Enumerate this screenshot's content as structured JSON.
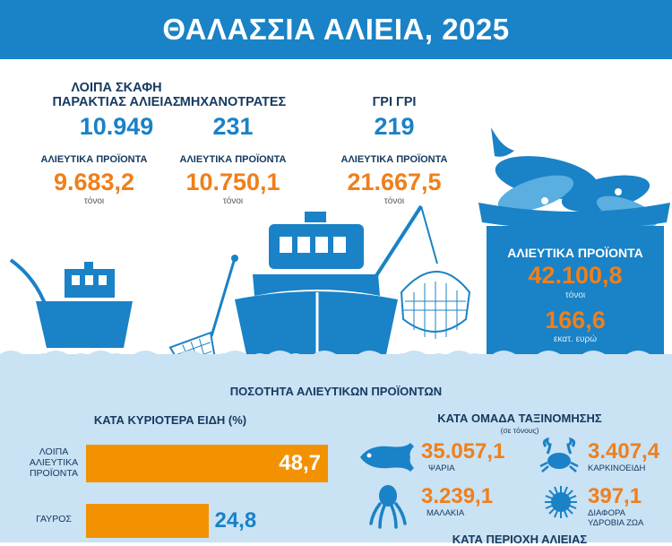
{
  "header": {
    "title": "ΘΑΛΑΣΣΙΑ ΑΛΙΕΙΑ, 2025"
  },
  "groups": [
    {
      "label_line1": "ΛΟΙΠΑ ΣΚΑΦΗ",
      "label_line2": "ΠΑΡΑΚΤΙΑΣ ΑΛΙΕΙΑΣ",
      "value": "10.949",
      "products_label": "ΑΛΙΕΥΤΙΚΑ ΠΡΟΪΟΝΤΑ",
      "products_value": "9.683,2",
      "unit": "τόνοι"
    },
    {
      "label_line1": "ΜΗΧΑΝΟΤΡΑΤΕΣ",
      "label_line2": "",
      "value": "231",
      "products_label": "ΑΛΙΕΥΤΙΚΑ ΠΡΟΪΟΝΤΑ",
      "products_value": "10.750,1",
      "unit": "τόνοι"
    },
    {
      "label_line1": "ΓΡΙ ΓΡΙ",
      "label_line2": "",
      "value": "219",
      "products_label": "ΑΛΙΕΥΤΙΚΑ ΠΡΟΪΟΝΤΑ",
      "products_value": "21.667,5",
      "unit": "τόνοι"
    }
  ],
  "total": {
    "label": "ΑΛΙΕΥΤΙΚΑ ΠΡΟΪΟΝΤΑ",
    "value": "42.100,8",
    "unit": "τόνοι",
    "money_value": "166,6",
    "money_unit": "εκατ. ευρώ"
  },
  "quantity_section": {
    "title": "ΠΟΣΟΤΗΤΑ ΑΛΙΕΥΤΙΚΩΝ ΠΡΟΪΟΝΤΩΝ"
  },
  "species_section": {
    "title": "ΚΑΤΑ ΚΥΡΙΟΤΕΡΑ ΕΙΔΗ (%)",
    "bars": [
      {
        "label_line1": "ΛΟΙΠΑ",
        "label_line2": "ΑΛΙΕΥΤΙΚΑ",
        "label_line3": "ΠΡΟΪΟΝΤΑ",
        "value": 48.7,
        "display": "48,7"
      },
      {
        "label_line1": "ΓΑΥΡΟΣ",
        "label_line2": "",
        "label_line3": "",
        "value": 24.8,
        "display": "24,8"
      }
    ]
  },
  "classification_section": {
    "title": "ΚΑΤΑ ΟΜΑΔΑ ΤΑΞΙΝΟΜΗΣΗΣ",
    "subtitle": "(σε τόνους)",
    "items": [
      {
        "icon": "fish-icon",
        "value": "35.057,1",
        "label_line1": "ΨΑΡΙΑ",
        "label_line2": ""
      },
      {
        "icon": "crab-icon",
        "value": "3.407,4",
        "label_line1": "ΚΑΡΚΙΝΟΕΙΔΗ",
        "label_line2": ""
      },
      {
        "icon": "octopus-icon",
        "value": "3.239,1",
        "label_line1": "ΜΑΛΑΚΙΑ",
        "label_line2": ""
      },
      {
        "icon": "sea-urchin-icon",
        "value": "397,1",
        "label_line1": "ΔΙΑΦΟΡΑ",
        "label_line2": "ΥΔΡΟΒΙΑ ΖΩΑ"
      }
    ]
  },
  "region_section": {
    "title": "ΚΑΤΑ ΠΕΡΙΟΧΗ ΑΛΙΕΙΑΣ"
  },
  "colors": {
    "blue": "#1a82c6",
    "navy": "#163a60",
    "orange": "#f07f1a",
    "bar": "#f29200",
    "sea": "#c9e2f4"
  }
}
